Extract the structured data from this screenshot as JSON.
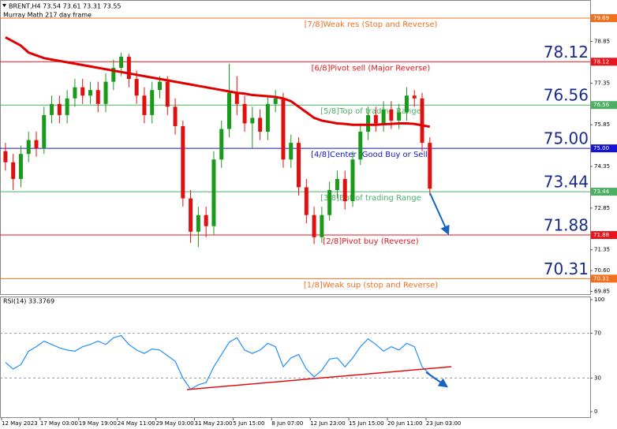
{
  "chart_data": [
    {
      "type": "candlestick",
      "title": "BRENT,H4  73.54 73.61 73.31 73.55",
      "subtitle": "Murray Math 217 day frame",
      "categories": [
        "12 May 2023",
        null,
        null,
        null,
        null,
        "17 May 03:00",
        null,
        null,
        null,
        null,
        "19 May 19:00",
        null,
        null,
        null,
        null,
        "24 May 11:00",
        null,
        null,
        null,
        null,
        "29 May 03:00",
        null,
        null,
        null,
        null,
        "31 May 23:00",
        null,
        null,
        null,
        null,
        "5 Jun 15:00",
        null,
        null,
        null,
        null,
        "8 Jun 07:00",
        null,
        null,
        null,
        null,
        "12 Jun 23:00",
        null,
        null,
        null,
        null,
        "15 Jun 15:00",
        null,
        null,
        null,
        null,
        "20 Jun 11:00",
        null,
        null,
        null,
        null,
        "23 Jun 03:00"
      ],
      "open": [
        74.9,
        74.5,
        73.9,
        74.8,
        75.3,
        75.0,
        76.2,
        76.6,
        76.2,
        76.8,
        77.2,
        76.9,
        77.1,
        76.6,
        77.4,
        77.9,
        78.3,
        77.5,
        76.9,
        76.2,
        77.1,
        77.4,
        76.5,
        75.8,
        73.2,
        72.0,
        72.6,
        72.2,
        74.6,
        75.7,
        77.0,
        76.6,
        75.9,
        76.1,
        75.6,
        76.6,
        76.8,
        74.6,
        75.2,
        73.6,
        72.6,
        71.8,
        72.6,
        73.5,
        73.9,
        73.1,
        74.6,
        75.6,
        76.2,
        75.9,
        76.4,
        76.0,
        76.3,
        76.9,
        76.8,
        75.2
      ],
      "high": [
        75.2,
        74.8,
        75.1,
        75.6,
        75.6,
        76.5,
        76.9,
        76.9,
        77.1,
        77.5,
        77.5,
        77.4,
        77.4,
        77.7,
        78.2,
        78.45,
        78.4,
        77.8,
        77.2,
        77.4,
        77.6,
        77.6,
        76.8,
        76.0,
        73.5,
        72.9,
        72.9,
        74.9,
        76.0,
        78.05,
        77.6,
        76.9,
        76.5,
        76.4,
        76.9,
        77.1,
        77.0,
        75.5,
        75.4,
        73.9,
        72.9,
        72.9,
        73.8,
        74.2,
        74.2,
        74.9,
        75.9,
        76.5,
        76.5,
        76.7,
        76.7,
        76.6,
        77.2,
        77.1,
        77.0,
        75.4
      ],
      "low": [
        74.2,
        73.5,
        73.6,
        74.5,
        74.7,
        74.8,
        75.9,
        75.9,
        75.9,
        76.5,
        76.6,
        76.6,
        76.3,
        76.3,
        77.1,
        77.6,
        77.2,
        76.6,
        75.9,
        75.9,
        76.8,
        76.2,
        75.5,
        72.9,
        71.6,
        71.45,
        71.8,
        71.9,
        74.3,
        75.4,
        76.2,
        75.6,
        75.0,
        75.3,
        75.3,
        76.3,
        74.3,
        74.3,
        73.3,
        72.3,
        71.55,
        71.6,
        72.4,
        73.2,
        72.8,
        72.9,
        74.4,
        75.3,
        75.6,
        75.6,
        75.7,
        75.7,
        76.0,
        76.5,
        74.9,
        73.31
      ],
      "close": [
        74.5,
        73.9,
        74.8,
        75.3,
        75.0,
        76.2,
        76.6,
        76.2,
        76.8,
        77.2,
        76.9,
        77.1,
        76.6,
        77.4,
        77.9,
        78.3,
        77.5,
        76.9,
        76.2,
        77.1,
        77.4,
        76.5,
        75.8,
        73.2,
        72.0,
        72.6,
        72.2,
        74.6,
        75.7,
        77.0,
        76.6,
        75.9,
        76.1,
        75.6,
        76.6,
        76.8,
        74.6,
        75.2,
        73.6,
        72.6,
        71.8,
        72.6,
        73.5,
        73.9,
        73.1,
        74.6,
        75.6,
        76.2,
        75.9,
        76.4,
        76.0,
        76.3,
        76.9,
        76.8,
        75.2,
        73.55
      ],
      "up_color": "#1a9a1a",
      "down_color": "#e01010",
      "ma": {
        "color": "#e00000",
        "values": [
          79.0,
          78.85,
          78.7,
          78.45,
          78.35,
          78.25,
          78.2,
          78.15,
          78.1,
          78.05,
          78.0,
          77.95,
          77.9,
          77.85,
          77.8,
          77.75,
          77.7,
          77.65,
          77.6,
          77.55,
          77.5,
          77.45,
          77.4,
          77.35,
          77.3,
          77.25,
          77.2,
          77.15,
          77.1,
          77.05,
          77.0,
          76.97,
          76.92,
          76.9,
          76.88,
          76.85,
          76.8,
          76.7,
          76.5,
          76.3,
          76.1,
          76.0,
          75.95,
          75.9,
          75.88,
          75.85,
          75.85,
          75.85,
          75.85,
          75.87,
          75.88,
          75.9,
          75.9,
          75.88,
          75.83,
          75.78
        ]
      },
      "levels": [
        {
          "value": 79.69,
          "label": "[7/8]Weak res (Stop and Reverse)",
          "color": "#f07020",
          "emphasis": false
        },
        {
          "value": 78.12,
          "label": "[6/8]Pivot sell (Major Reverse)",
          "color": "#e8141e",
          "emphasis": true
        },
        {
          "value": 76.56,
          "label": "[5/8]Top of trading Range",
          "color": "#4caf64",
          "emphasis": true
        },
        {
          "value": 75.0,
          "value_label": "75.00",
          "label": "[4/8]Center (Good Buy or Sell)",
          "color": "#1414d2",
          "emphasis": true
        },
        {
          "value": 73.44,
          "label": "[3/8]Bot of trading Range",
          "color": "#4caf64",
          "emphasis": true
        },
        {
          "value": 71.88,
          "label": "[2/8]Pivot buy (Reverse)",
          "color": "#e8141e",
          "emphasis": true
        },
        {
          "value": 70.31,
          "label": "[1/8]Weak sup (stop and Reverse)",
          "color": "#f07020",
          "emphasis": true
        }
      ],
      "ylim": [
        69.78,
        79.86
      ],
      "yticks": [
        78.85,
        77.35,
        75.85,
        74.35,
        72.85,
        71.35,
        {
          "value": 70.6,
          "label": "70.60"
        },
        69.85
      ]
    },
    {
      "type": "line",
      "title": "RSI(14) 33.3769",
      "series": [
        {
          "color": "#1e90ff",
          "values": [
            44,
            38,
            42,
            54,
            58,
            63,
            60,
            57,
            55,
            54,
            58,
            60,
            63,
            60,
            66,
            68,
            60,
            55,
            52,
            56,
            55,
            50,
            45,
            30,
            20,
            24,
            26,
            40,
            51,
            62,
            66,
            55,
            52,
            55,
            61,
            58,
            40,
            48,
            51,
            38,
            31,
            37,
            47,
            48,
            40,
            48,
            58,
            65,
            60,
            54,
            58,
            55,
            61,
            58,
            40,
            33.3769
          ]
        }
      ],
      "ylim": [
        0,
        100
      ],
      "yticks": [
        100,
        70,
        30,
        0
      ],
      "grid": "dashed"
    }
  ]
}
